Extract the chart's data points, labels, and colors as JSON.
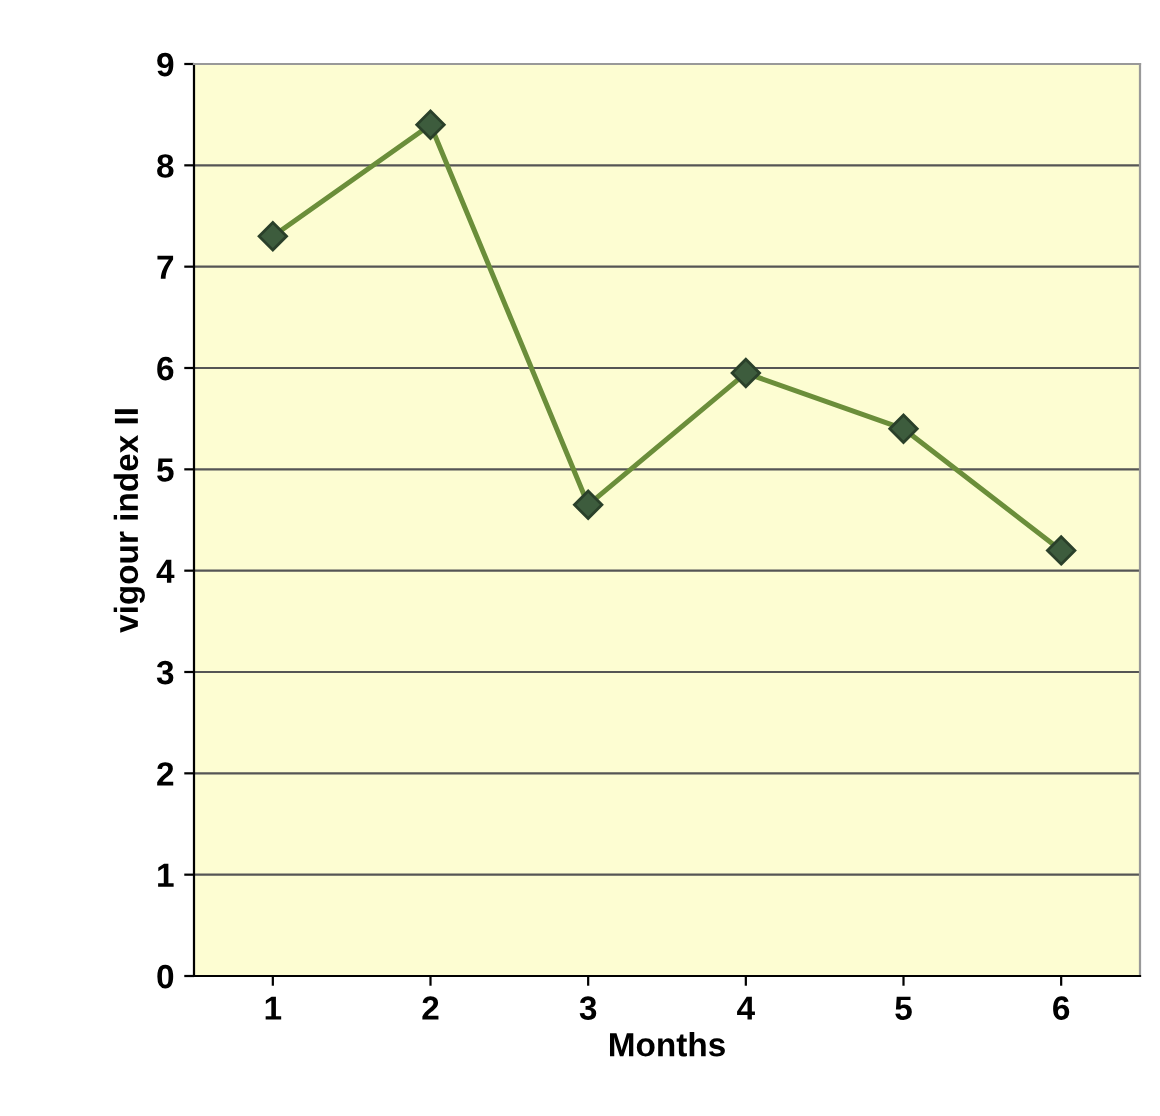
{
  "chart_data": {
    "type": "line",
    "xlabel": "Months",
    "ylabel": "vigour index II",
    "categories": [
      "1",
      "2",
      "3",
      "4",
      "5",
      "6"
    ],
    "series": [
      {
        "color": "#6b8e3a",
        "values": [
          7.3,
          8.4,
          4.65,
          5.95,
          5.4,
          4.2
        ]
      }
    ],
    "ylim": [
      0,
      9
    ],
    "yticks": [
      0,
      1,
      2,
      3,
      4,
      5,
      6,
      7,
      8,
      9
    ],
    "grid": "y",
    "marker": "diamond",
    "line_style": "solid"
  }
}
